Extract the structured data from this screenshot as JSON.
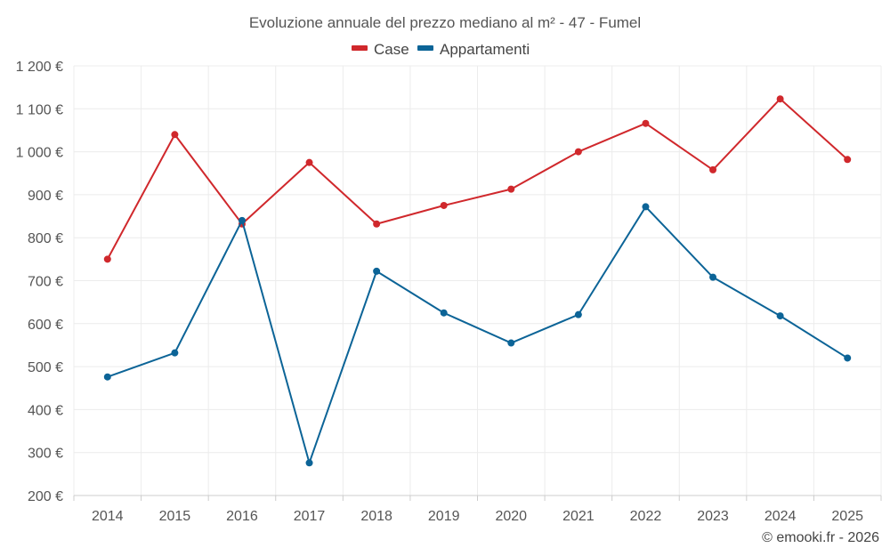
{
  "chart_data": {
    "type": "line",
    "title": "Evoluzione annuale del prezzo mediano al m² - 47 - Fumel",
    "categories": [
      "2014",
      "2015",
      "2016",
      "2017",
      "2018",
      "2019",
      "2020",
      "2021",
      "2022",
      "2023",
      "2024",
      "2025"
    ],
    "series": [
      {
        "name": "Case",
        "color": "#d0282c",
        "values": [
          750,
          1040,
          832,
          975,
          832,
          875,
          913,
          1000,
          1066,
          958,
          1123,
          982
        ]
      },
      {
        "name": "Appartamenti",
        "color": "#0c6497",
        "values": [
          476,
          532,
          840,
          276,
          722,
          625,
          555,
          621,
          872,
          708,
          618,
          520
        ]
      }
    ],
    "ylim": [
      200,
      1200
    ],
    "yticks": [
      200,
      300,
      400,
      500,
      600,
      700,
      800,
      900,
      1000,
      1100,
      1200
    ],
    "ytick_labels": [
      "200 €",
      "300 €",
      "400 €",
      "500 €",
      "600 €",
      "700 €",
      "800 €",
      "900 €",
      "1 000 €",
      "1 100 €",
      "1 200 €"
    ],
    "xlabel": "",
    "ylabel": "",
    "grid": true,
    "legend_position": "top-center"
  },
  "credit": "© emooki.fr - 2026"
}
